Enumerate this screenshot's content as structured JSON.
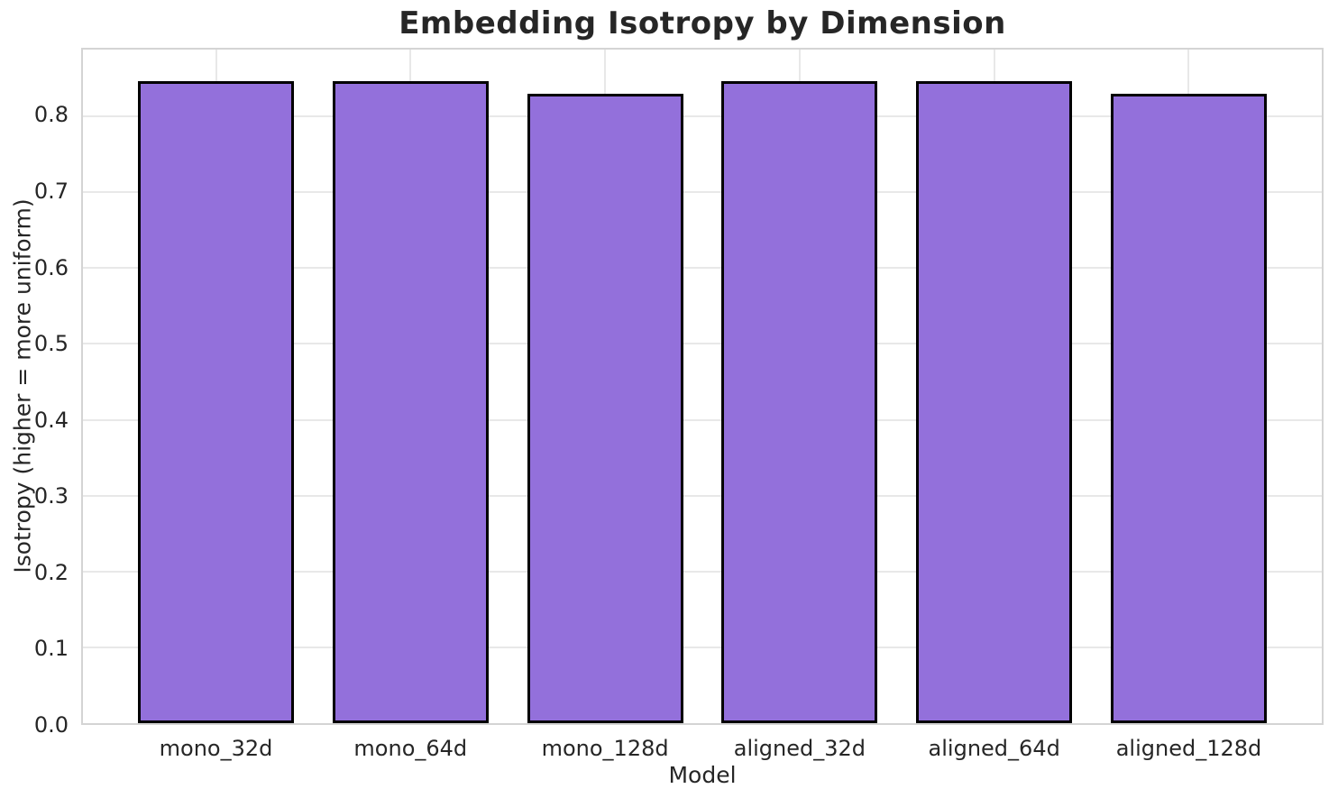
{
  "chart_data": {
    "type": "bar",
    "title": "Embedding Isotropy by Dimension",
    "xlabel": "Model",
    "ylabel": "Isotropy (higher = more uniform)",
    "categories": [
      "mono_32d",
      "mono_64d",
      "mono_128d",
      "aligned_32d",
      "aligned_64d",
      "aligned_128d"
    ],
    "values": [
      0.846,
      0.846,
      0.83,
      0.846,
      0.847,
      0.83
    ],
    "ylim": [
      0.0,
      0.888
    ],
    "yticks": [
      0.0,
      0.1,
      0.2,
      0.3,
      0.4,
      0.5,
      0.6,
      0.7,
      0.8
    ],
    "ytick_labels": [
      "0.0",
      "0.1",
      "0.2",
      "0.3",
      "0.4",
      "0.5",
      "0.6",
      "0.7",
      "0.8"
    ],
    "grid": true,
    "legend_position": "none",
    "colors": {
      "bar_fill": "#9370DB",
      "bar_edge": "#000000",
      "grid_line": "#e8e8e8",
      "spine": "#d4d4d4",
      "text": "#262626",
      "background": "#ffffff"
    }
  }
}
